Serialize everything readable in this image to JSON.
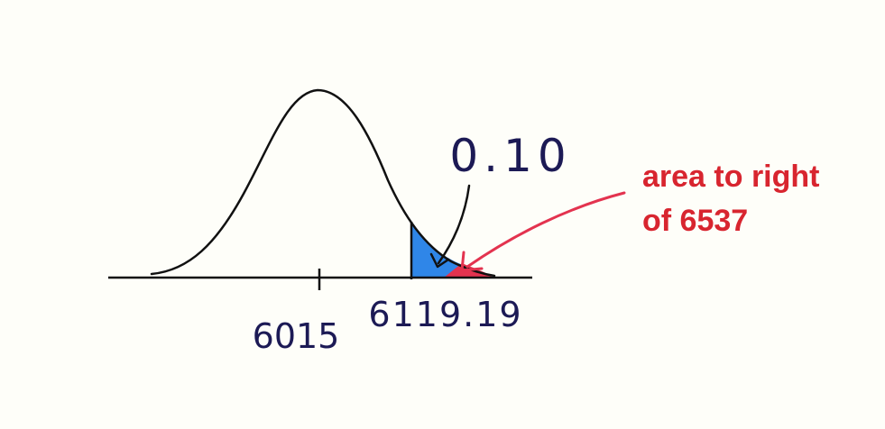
{
  "labels": {
    "mean": "6015",
    "cutoff": "6119.19",
    "area_value": "0.10",
    "annotation_line1": "area to right",
    "annotation_line2": "of 6537"
  },
  "colors": {
    "background": "#fefef9",
    "curve": "#111111",
    "handwriting": "#1c1a55",
    "shaded_tail": "#2f86e8",
    "highlight_tail": "#e3334f",
    "annotation": "#d8252f",
    "arrow": "#e3334f"
  }
}
